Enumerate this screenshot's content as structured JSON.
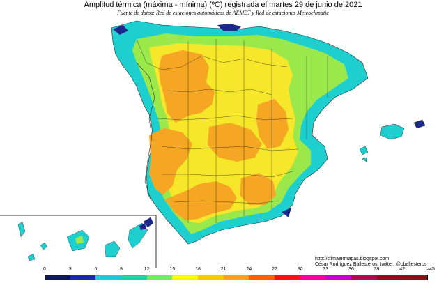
{
  "title": "Amplitud térmica (máxima - mínima) (ºC) registrada el martes 29 de junio de 2021",
  "subtitle": "Fuente de datos: Red de estaciones automáticas de AEMET y Red de estaciones Meteoclimatic",
  "credits": {
    "url": "http://climaenmapas.blogspot.com",
    "author": "César Rodríguez Ballesteros, twitter: @cballesteros"
  },
  "legend": {
    "tick_labels": [
      "0",
      "3",
      "6",
      "9",
      "12",
      "15",
      "18",
      "21",
      "24",
      "27",
      "30",
      "33",
      "36",
      "39",
      "42",
      ">45"
    ],
    "colors": [
      "#0a1a5c",
      "#1d2fa0",
      "#1fc8d8",
      "#18d0a0",
      "#78e860",
      "#f8f800",
      "#f8c800",
      "#f8a020",
      "#f86000",
      "#f81010",
      "#f800a0",
      "#c800c8",
      "#a81050",
      "#901020",
      "#801818"
    ]
  },
  "palette": {
    "cyan": "#1ecfd0",
    "teal": "#17c4a8",
    "green": "#9be84a",
    "lightgreen": "#c8ee40",
    "yellow": "#f6e72a",
    "orange": "#f5a623",
    "navy": "#1b2a8a",
    "border": "#2a2a2a"
  }
}
